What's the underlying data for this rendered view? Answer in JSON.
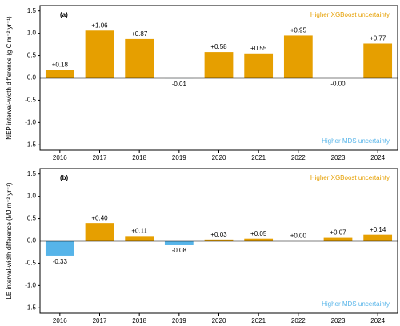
{
  "chart_data": [
    {
      "type": "bar",
      "panel_label": "(a)",
      "ylabel": "NEP interval-width difference (g C m⁻² yr⁻¹)",
      "categories": [
        "2016",
        "2017",
        "2018",
        "2019",
        "2020",
        "2021",
        "2022",
        "2023",
        "2024"
      ],
      "values": [
        0.18,
        1.06,
        0.87,
        -0.01,
        0.58,
        0.55,
        0.95,
        -0.0,
        0.77
      ],
      "value_labels": [
        "+0.18",
        "+1.06",
        "+0.87",
        "-0.01",
        "+0.58",
        "+0.55",
        "+0.95",
        "-0.00",
        "+0.77"
      ],
      "positive_color": "#E69F00",
      "negative_color": "#56B4E9",
      "annotation_top": "Higher XGBoost uncertainty",
      "annotation_bottom": "Higher MDS uncertainty",
      "ylim": [
        -1.62,
        1.62
      ],
      "yticks": [
        1.5,
        {
          "value": 1,
          "label": "1.0"
        },
        0.5,
        {
          "value": 0,
          "label": "0.0"
        },
        -0.5,
        {
          "value": -1,
          "label": "-1.0"
        },
        -1.5
      ]
    },
    {
      "type": "bar",
      "panel_label": "(b)",
      "ylabel": "LE interval-width difference (MJ m⁻² yr⁻¹)",
      "categories": [
        "2016",
        "2017",
        "2018",
        "2019",
        "2020",
        "2021",
        "2022",
        "2023",
        "2024"
      ],
      "values": [
        -0.33,
        0.4,
        0.11,
        -0.08,
        0.03,
        0.05,
        0.0,
        0.07,
        0.14
      ],
      "value_labels": [
        "-0.33",
        "+0.40",
        "+0.11",
        "-0.08",
        "+0.03",
        "+0.05",
        "+0.00",
        "+0.07",
        "+0.14"
      ],
      "positive_color": "#E69F00",
      "negative_color": "#56B4E9",
      "annotation_top": "Higher XGBoost uncertainty",
      "annotation_bottom": "Higher MDS uncertainty",
      "ylim": [
        -1.62,
        1.62
      ],
      "yticks": [
        1.5,
        {
          "value": 1,
          "label": "1.0"
        },
        0.5,
        {
          "value": 0,
          "label": "0.0"
        },
        -0.5,
        {
          "value": -1,
          "label": "-1.0"
        },
        -1.5
      ]
    }
  ]
}
